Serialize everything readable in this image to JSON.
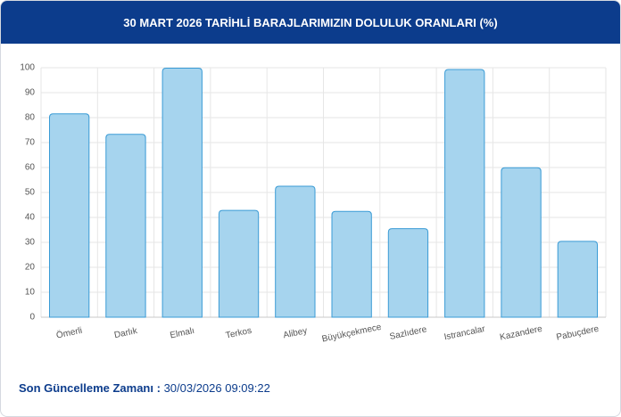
{
  "chart_data": {
    "type": "bar",
    "title": "30 MART 2026 TARİHLİ BARAJLARIMIZIN DOLULUK ORANLARI (%)",
    "categories": [
      "Ömerli",
      "Darlık",
      "Elmalı",
      "Terkos",
      "Alibey",
      "Büyükçekmece",
      "Sazlıdere",
      "Istrancalar",
      "Kazandere",
      "Pabuçdere"
    ],
    "values": [
      81.5,
      73.3,
      99.8,
      42.8,
      52.5,
      42.4,
      35.5,
      99.3,
      59.9,
      30.4
    ],
    "color": "#a6d4ee",
    "ylim": [
      0,
      100
    ],
    "yticks": [
      0,
      10,
      20,
      30,
      40,
      50,
      60,
      70,
      80,
      90,
      100
    ],
    "grid": true
  },
  "footer": {
    "label": "Son Güncelleme Zamanı :",
    "value": "30/03/2026 09:09:22"
  }
}
